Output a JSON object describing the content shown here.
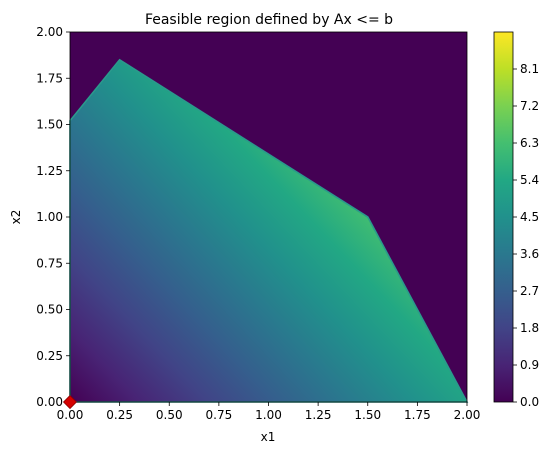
{
  "chart_data": {
    "type": "heatmap",
    "title": "Feasible region defined by Ax <= b",
    "xlabel": "x1",
    "ylabel": "x2",
    "xlim": [
      0.0,
      2.0
    ],
    "ylim": [
      0.0,
      2.0
    ],
    "xticks": [
      "0.00",
      "0.25",
      "0.50",
      "0.75",
      "1.00",
      "1.25",
      "1.50",
      "1.75",
      "2.00"
    ],
    "yticks": [
      "0.00",
      "0.25",
      "0.50",
      "0.75",
      "1.00",
      "1.25",
      "1.50",
      "1.75",
      "2.00"
    ],
    "colorbar": {
      "min": 0.0,
      "max": 9.0,
      "ticks": [
        "0.0",
        "0.9",
        "1.8",
        "2.7",
        "3.6",
        "4.5",
        "5.4",
        "6.3",
        "7.2",
        "8.1"
      ],
      "colormap": "viridis"
    },
    "objective_weights": [
      2.6,
      2.3
    ],
    "feasible_region_vertices": [
      [
        0.0,
        0.0
      ],
      [
        0.0,
        1.52
      ],
      [
        0.25,
        1.85
      ],
      [
        1.5,
        1.0
      ],
      [
        2.0,
        0.0
      ]
    ],
    "grid": false,
    "legend": "none",
    "markers": [
      {
        "x": 0.0,
        "y": 0.0,
        "shape": "diamond",
        "color": "#d40000"
      }
    ],
    "colors": {
      "infeasible": "#440154"
    }
  }
}
